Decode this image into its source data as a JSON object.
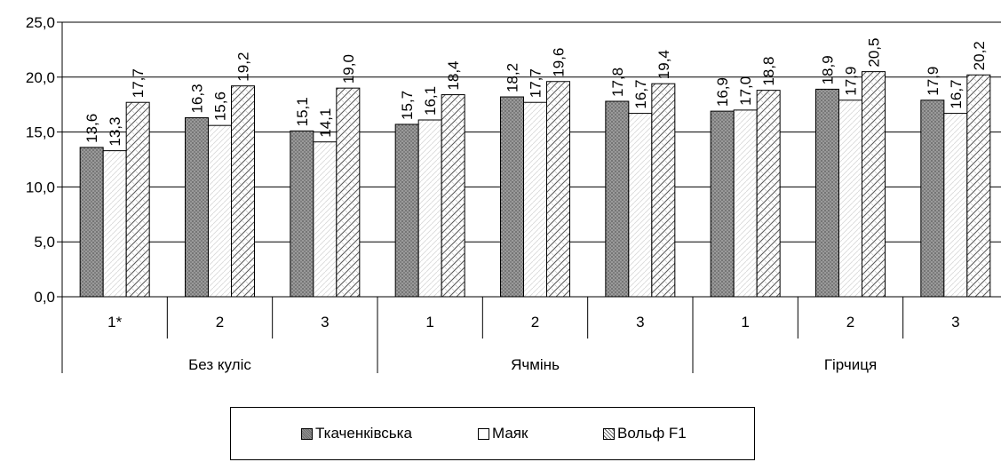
{
  "chart_data": {
    "type": "bar",
    "yticks": [
      "0,0",
      "5,0",
      "10,0",
      "15,0",
      "20,0",
      "25,0"
    ],
    "ylim": [
      0,
      25
    ],
    "grid": true,
    "categories": [
      "1*",
      "2",
      "3",
      "1",
      "2",
      "3",
      "1",
      "2",
      "3"
    ],
    "groups": [
      {
        "label": "Без куліс",
        "span": 3
      },
      {
        "label": "Ячмінь",
        "span": 3
      },
      {
        "label": "Гірчиця",
        "span": 3
      }
    ],
    "series": [
      {
        "name": "Ткаченківська",
        "values": [
          13.6,
          16.3,
          15.1,
          15.7,
          18.2,
          17.8,
          16.9,
          18.9,
          17.9
        ],
        "labels": [
          "13,6",
          "16,3",
          "15,1",
          "15,7",
          "18,2",
          "17,8",
          "16,9",
          "18,9",
          "17,9"
        ],
        "color": "#8c8c8c"
      },
      {
        "name": "Маяк",
        "values": [
          13.3,
          15.6,
          14.1,
          16.1,
          17.7,
          16.7,
          17.0,
          17.9,
          16.7
        ],
        "labels": [
          "13,3",
          "15,6",
          "14,1",
          "16,1",
          "17,7",
          "16,7",
          "17,0",
          "17,9",
          "16,7"
        ],
        "color": "#f2f2f2"
      },
      {
        "name": "Вольф F1",
        "values": [
          17.7,
          19.2,
          19.0,
          18.4,
          19.6,
          19.4,
          18.8,
          20.5,
          20.2
        ],
        "labels": [
          "17,7",
          "19,2",
          "19,0",
          "18,4",
          "19,6",
          "19,4",
          "18,8",
          "20,5",
          "20,2"
        ],
        "color": "#d9d9d9"
      }
    ],
    "legend_position": "bottom"
  }
}
